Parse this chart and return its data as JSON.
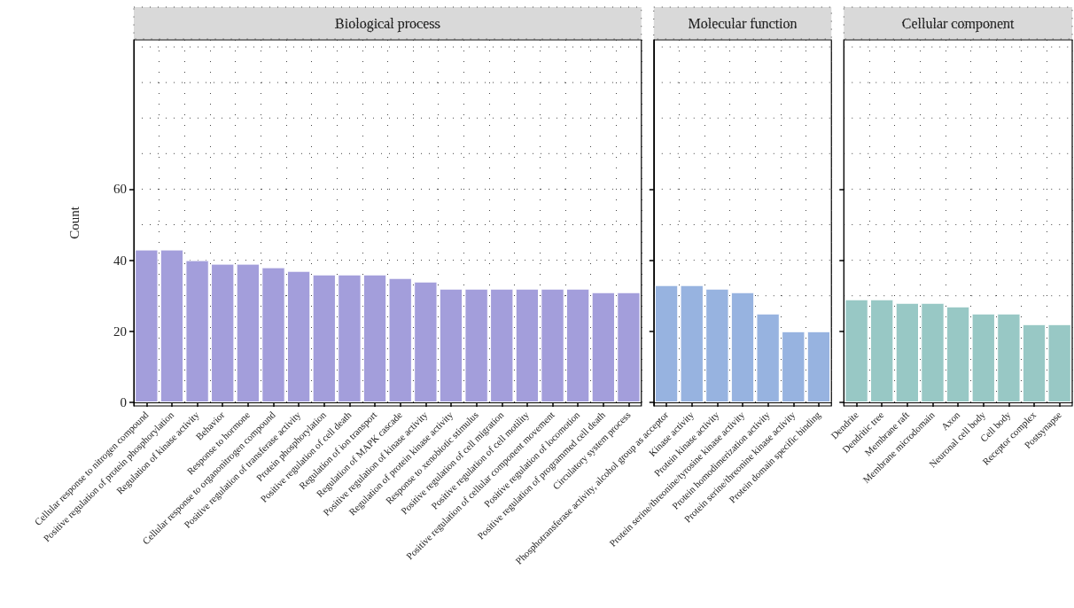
{
  "chart_data": [
    {
      "type": "bar",
      "title": "Biological process",
      "ylabel": "Count",
      "categories": [
        "Cellular response to nitrogen compound",
        "Positive regulation of protein phosphorylation",
        "Regulation of kinase activity",
        "Behavior",
        "Response to hormone",
        "Cellular response to organonitrogen compound",
        "Positive regulation of transferase activity",
        "Protein phosphorylation",
        "Positive regulation of cell death",
        "Regulation of ion transport",
        "Regulation of MAPK cascade",
        "Positive regulation of kinase activity",
        "Regulation of protein kinase activity",
        "Response to xenobiotic stimulus",
        "Positive regulation of cell migration",
        "Positive regulation of cell motility",
        "Positive regulation of cellular component movement",
        "Positive regulation of locomotion",
        "Positive regulation of programmed cell death",
        "Circulatory system process"
      ],
      "values": [
        43,
        43,
        40,
        39,
        39,
        38,
        37,
        36,
        36,
        36,
        35,
        34,
        32,
        32,
        32,
        32,
        32,
        32,
        31,
        31
      ],
      "color": "#a39edb",
      "ylim": [
        -1,
        102
      ],
      "yticks": [
        0,
        20,
        40,
        60
      ],
      "grid": true
    },
    {
      "type": "bar",
      "title": "Molecular function",
      "categories": [
        "Phosphotransferase activity, alcohol group as acceptor",
        "Kinase activity",
        "Protein kinase activity",
        "Protein serine/threonine/tyrosine kinase activity",
        "Protein homodimerization activity",
        "Protein serine/threonine kinase activity",
        "Protein domain specific binding"
      ],
      "values": [
        33,
        33,
        32,
        31,
        25,
        20,
        20
      ],
      "color": "#97b3e0",
      "ylim": [
        -1,
        102
      ],
      "yticks": [
        0,
        20,
        40,
        60
      ],
      "grid": true,
      "tick_labels": "x"
    },
    {
      "type": "bar",
      "title": "Cellular component",
      "categories": [
        "Dendrite",
        "Dendritic tree",
        "Membrane raft",
        "Membrane microdomain",
        "Axon",
        "Neuronal cell body",
        "Cell body",
        "Receptor complex",
        "Postsynapse"
      ],
      "values": [
        29,
        29,
        28,
        28,
        27,
        25,
        25,
        22,
        22
      ],
      "color": "#98c8c5",
      "ylim": [
        -1,
        102
      ],
      "yticks": [
        0,
        20,
        40,
        60
      ],
      "grid": true,
      "tick_labels": "x"
    }
  ]
}
